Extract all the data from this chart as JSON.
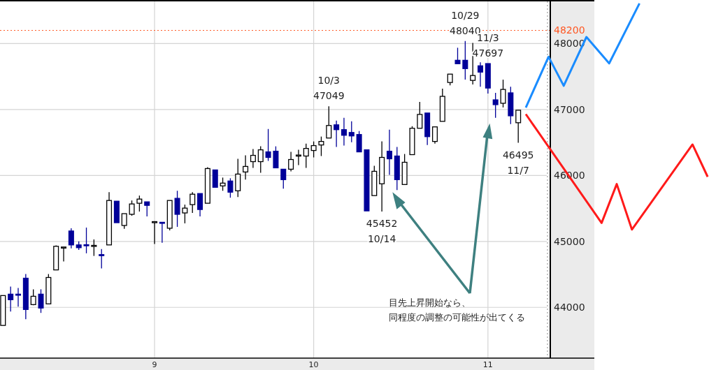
{
  "chart_data": {
    "type": "candlestick",
    "colors": [
      "#ffffff",
      "#000099",
      "#000099",
      "#000099",
      "#ffffff",
      "#000099",
      "#ffffff",
      "#ffffff",
      "#ffffff",
      "#000099",
      "#000099",
      "#000099",
      "#ffffff",
      "#000099",
      "#ffffff",
      "#000099",
      "#ffffff",
      "#ffffff",
      "#ffffff",
      "#000099",
      "#ffffff",
      "#000099",
      "#ffffff",
      "#000099",
      "#ffffff",
      "#ffffff",
      "#000099",
      "#ffffff",
      "#000099",
      "#ffffff",
      "#000099",
      "#ffffff",
      "#ffffff",
      "#ffffff",
      "#ffffff",
      "#000099",
      "#000099",
      "#000099",
      "#ffffff",
      "#ffffff",
      "#ffffff",
      "#ffffff",
      "#ffffff",
      "#ffffff",
      "#000099",
      "#000099",
      "#000099",
      "#000099",
      "#000099",
      "#ffffff",
      "#ffffff",
      "#000099",
      "#000099",
      "#ffffff",
      "#ffffff",
      "#ffffff",
      "#000099",
      "#ffffff",
      "#ffffff",
      "#ffffff",
      "#000099",
      "#000099",
      "#ffffff",
      "#000099",
      "#000099",
      "#000099",
      "#ffffff",
      "#000099",
      "#ffffff",
      null,
      null,
      null,
      null,
      null,
      null,
      null,
      null,
      null,
      null,
      null,
      null,
      null,
      null,
      null,
      null,
      null,
      null,
      null,
      null,
      null,
      null,
      null,
      null,
      null,
      null
    ],
    "categories": [
      null,
      null,
      null,
      null,
      null,
      null,
      null,
      null,
      null,
      null,
      null,
      null,
      null,
      null,
      null,
      null,
      null,
      null,
      null,
      null,
      "9",
      null,
      null,
      null,
      null,
      null,
      null,
      null,
      null,
      null,
      null,
      null,
      null,
      null,
      null,
      null,
      null,
      null,
      null,
      null,
      null,
      "10",
      null,
      null,
      null,
      null,
      null,
      null,
      null,
      null,
      null,
      null,
      null,
      null,
      null,
      null,
      null,
      null,
      null,
      null,
      null,
      null,
      null,
      null,
      "11",
      null,
      null,
      null,
      null,
      null,
      null,
      null,
      null,
      null,
      null,
      null,
      null,
      null,
      null,
      null,
      null,
      null,
      null,
      null,
      null,
      null,
      null,
      null,
      null,
      null,
      null,
      null,
      null,
      null,
      null
    ],
    "ohlc": [
      [
        43726,
        44179,
        43726,
        44179
      ],
      [
        44200,
        44316,
        43937,
        44116
      ],
      [
        44200,
        44295,
        44010,
        44190
      ],
      [
        44442,
        44505,
        43821,
        43968
      ],
      [
        44042,
        44274,
        44032,
        44168
      ],
      [
        44200,
        44274,
        43916,
        43990
      ],
      [
        44053,
        44505,
        44053,
        44453
      ],
      [
        44568,
        44940,
        44568,
        44926
      ],
      [
        44905,
        44915,
        44695,
        44915
      ],
      [
        45158,
        45200,
        44895,
        44947
      ],
      [
        44947,
        45000,
        44870,
        44905
      ],
      [
        44950,
        45210,
        44820,
        44940
      ],
      [
        44935,
        45030,
        44780,
        44940
      ],
      [
        44800,
        44885,
        44590,
        44790
      ],
      [
        44947,
        45747,
        44947,
        45621
      ],
      [
        45610,
        45610,
        45284,
        45284
      ],
      [
        45242,
        45421,
        45190,
        45421
      ],
      [
        45411,
        45621,
        45390,
        45568
      ],
      [
        45579,
        45695,
        45453,
        45642
      ],
      [
        45600,
        45600,
        45379,
        45547
      ],
      [
        45295,
        45305,
        44960,
        45300
      ],
      [
        45290,
        45290,
        44980,
        45280
      ],
      [
        45200,
        45621,
        45168,
        45621
      ],
      [
        45653,
        45768,
        45221,
        45411
      ],
      [
        45432,
        45558,
        45274,
        45505
      ],
      [
        45558,
        45747,
        45432,
        45716
      ],
      [
        45726,
        45726,
        45379,
        45484
      ],
      [
        45579,
        46126,
        45579,
        46105
      ],
      [
        46084,
        46084,
        45821,
        45821
      ],
      [
        45842,
        45968,
        45768,
        45884
      ],
      [
        45916,
        45958,
        45663,
        45747
      ],
      [
        45768,
        46253,
        45674,
        46021
      ],
      [
        46053,
        46305,
        45937,
        46137
      ],
      [
        46210,
        46400,
        46116,
        46305
      ],
      [
        46210,
        46442,
        46042,
        46389
      ],
      [
        46358,
        46705,
        46221,
        46274
      ],
      [
        46368,
        46442,
        46116,
        46116
      ],
      [
        46095,
        46095,
        45800,
        45937
      ],
      [
        46095,
        46358,
        46063,
        46242
      ],
      [
        46305,
        46389,
        46158,
        46310
      ],
      [
        46295,
        46484,
        46116,
        46410
      ],
      [
        46379,
        46516,
        46274,
        46453
      ],
      [
        46463,
        46590,
        46295,
        46516
      ],
      [
        46568,
        47049,
        46568,
        46758
      ],
      [
        46768,
        46832,
        46432,
        46695
      ],
      [
        46695,
        46874,
        46453,
        46610
      ],
      [
        46652,
        46821,
        46505,
        46600
      ],
      [
        46621,
        46674,
        46358,
        46358
      ],
      [
        46389,
        46389,
        45463,
        45463
      ],
      [
        45695,
        46147,
        45695,
        46063
      ],
      [
        45874,
        46516,
        45452,
        46274
      ],
      [
        46368,
        46695,
        46010,
        46253
      ],
      [
        46295,
        46432,
        45779,
        45937
      ],
      [
        45863,
        46326,
        45863,
        46200
      ],
      [
        46316,
        46747,
        46316,
        46716
      ],
      [
        46716,
        47116,
        46716,
        46926
      ],
      [
        46947,
        46947,
        46463,
        46589
      ],
      [
        46516,
        46737,
        46484,
        46737
      ],
      [
        46821,
        47316,
        46821,
        47200
      ],
      [
        47410,
        47537,
        47368,
        47537
      ],
      [
        47747,
        47937,
        47695,
        47695
      ],
      [
        47747,
        48040,
        47453,
        47621
      ],
      [
        47442,
        48011,
        47379,
        47516
      ],
      [
        47663,
        47716,
        47347,
        47568
      ],
      [
        47697,
        47697,
        47242,
        47326
      ],
      [
        47147,
        47253,
        46874,
        47074
      ],
      [
        47095,
        47453,
        47032,
        47305
      ],
      [
        47253,
        47347,
        46779,
        46905
      ],
      [
        46800,
        46990,
        46495,
        46990
      ],
      null,
      null,
      null,
      null,
      null,
      null,
      null,
      null,
      null,
      null,
      null,
      null,
      null,
      null,
      null,
      null,
      null,
      null,
      null,
      null,
      null,
      null,
      null,
      null,
      null,
      null
    ],
    "series": [
      {
        "type": "line",
        "color": "#1a8cff",
        "values": [
          null,
          null,
          null,
          null,
          null,
          null,
          null,
          null,
          null,
          null,
          null,
          null,
          null,
          null,
          null,
          null,
          null,
          null,
          null,
          null,
          null,
          null,
          null,
          null,
          null,
          null,
          null,
          null,
          null,
          null,
          null,
          null,
          null,
          null,
          null,
          null,
          null,
          null,
          null,
          null,
          null,
          null,
          null,
          null,
          null,
          null,
          null,
          null,
          null,
          null,
          null,
          null,
          null,
          null,
          null,
          null,
          null,
          null,
          null,
          null,
          null,
          null,
          null,
          null,
          null,
          null,
          null,
          null,
          null,
          47030,
          null,
          null,
          47800,
          null,
          47360,
          null,
          null,
          48100,
          null,
          null,
          47700,
          null,
          null,
          null,
          48610,
          null,
          null,
          null,
          null,
          null,
          null,
          null,
          null,
          null,
          null
        ]
      },
      {
        "type": "line",
        "color": "#ff1a1a",
        "values": [
          null,
          null,
          null,
          null,
          null,
          null,
          null,
          null,
          null,
          null,
          null,
          null,
          null,
          null,
          null,
          null,
          null,
          null,
          null,
          null,
          null,
          null,
          null,
          null,
          null,
          null,
          null,
          null,
          null,
          null,
          null,
          null,
          null,
          null,
          null,
          null,
          null,
          null,
          null,
          null,
          null,
          null,
          null,
          null,
          null,
          null,
          null,
          null,
          null,
          null,
          null,
          null,
          null,
          null,
          null,
          null,
          null,
          null,
          null,
          null,
          null,
          null,
          null,
          null,
          null,
          null,
          null,
          null,
          null,
          46930,
          null,
          null,
          null,
          null,
          null,
          null,
          null,
          null,
          null,
          45280,
          null,
          45870,
          null,
          45180,
          null,
          null,
          null,
          null,
          null,
          null,
          null,
          46470,
          null,
          45980,
          null
        ]
      }
    ],
    "ylim": [
      43230,
      48640
    ],
    "yticks": [
      44000,
      45000,
      46000,
      47000,
      48000
    ],
    "grid": true,
    "ref_lines": [
      {
        "axis": "y",
        "value": 48200,
        "label": "48200",
        "color": "#ff5722",
        "line_style": "dotted"
      }
    ],
    "annotations": [
      {
        "text": "10/3\n47049",
        "y": 47049
      },
      {
        "text": "45452\n10/14",
        "y": 45452
      },
      {
        "text": "10/29\n48040",
        "y": 48040
      },
      {
        "text": "11/3\n47697",
        "y": 47697
      },
      {
        "text": "46495\n11/7",
        "y": 46495
      },
      "目先上昇開始なら、",
      "同程度の調整の可能性が出てくる"
    ]
  }
}
